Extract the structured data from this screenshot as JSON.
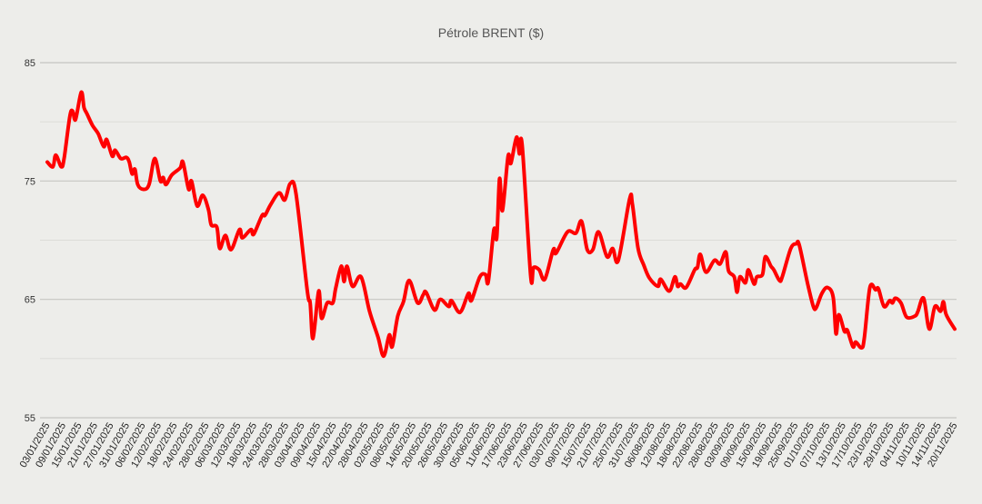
{
  "chart_data": {
    "type": "line",
    "title": "Pétrole BRENT ($)",
    "xlabel": "",
    "ylabel": "",
    "ylim": [
      55,
      85
    ],
    "yticks": [
      "85",
      "75",
      "65",
      "55"
    ],
    "minor_gridlines": [
      60,
      70,
      80
    ],
    "grid": true,
    "legend": "none",
    "colors": {
      "line": "#ff0000",
      "background": "#ededea",
      "major_grid": "#c6c6c2",
      "minor_grid": "#dcdcd8"
    },
    "xtick_labels": [
      "03/01/2025",
      "09/01/2025",
      "15/01/2025",
      "21/01/2025",
      "27/01/2025",
      "31/01/2025",
      "06/02/2025",
      "12/02/2025",
      "18/02/2025",
      "24/02/2025",
      "28/02/2025",
      "06/03/2025",
      "12/03/2025",
      "18/03/2025",
      "24/03/2025",
      "28/03/2025",
      "03/04/2025",
      "09/04/2025",
      "15/04/2025",
      "22/04/2025",
      "28/04/2025",
      "02/05/2025",
      "08/05/2025",
      "14/05/2025",
      "20/05/2025",
      "26/05/2025",
      "30/05/2025",
      "05/06/2025",
      "11/06/2025",
      "17/06/2025",
      "23/06/2025",
      "27/06/2025",
      "03/07/2025",
      "09/07/2025",
      "15/07/2025",
      "21/07/2025",
      "25/07/2025",
      "31/07/2025",
      "06/08/2025",
      "12/08/2025",
      "18/08/2025",
      "22/08/2025",
      "28/08/2025",
      "03/09/2025",
      "09/09/2025",
      "15/09/2025",
      "19/09/2025",
      "25/09/2025",
      "01/10/2025",
      "07/10/2025",
      "13/10/2025",
      "17/10/2025",
      "23/10/2025",
      "29/10/2025",
      "04/11/2025",
      "10/11/2025",
      "14/11/2025",
      "20/11/2025"
    ],
    "series": [
      {
        "points": [
          [
            "2025-01-03",
            76.6
          ],
          [
            "2025-01-05",
            76.2
          ],
          [
            "2025-01-06",
            77.2
          ],
          [
            "2025-01-08",
            76.2
          ],
          [
            "2025-01-09",
            77.0
          ],
          [
            "2025-01-11",
            80.5
          ],
          [
            "2025-01-12",
            80.9
          ],
          [
            "2025-01-13",
            80.2
          ],
          [
            "2025-01-15",
            82.5
          ],
          [
            "2025-01-16",
            81.2
          ],
          [
            "2025-01-17",
            80.7
          ],
          [
            "2025-01-19",
            79.7
          ],
          [
            "2025-01-21",
            79.0
          ],
          [
            "2025-01-23",
            77.9
          ],
          [
            "2025-01-24",
            78.5
          ],
          [
            "2025-01-26",
            77.1
          ],
          [
            "2025-01-27",
            77.6
          ],
          [
            "2025-01-29",
            76.9
          ],
          [
            "2025-01-31",
            77.0
          ],
          [
            "2025-02-01",
            76.6
          ],
          [
            "2025-02-02",
            75.6
          ],
          [
            "2025-02-03",
            76.0
          ],
          [
            "2025-02-04",
            74.7
          ],
          [
            "2025-02-06",
            74.3
          ],
          [
            "2025-02-08",
            74.7
          ],
          [
            "2025-02-10",
            76.9
          ],
          [
            "2025-02-12",
            75.0
          ],
          [
            "2025-02-13",
            75.3
          ],
          [
            "2025-02-14",
            74.7
          ],
          [
            "2025-02-16",
            75.5
          ],
          [
            "2025-02-19",
            76.1
          ],
          [
            "2025-02-20",
            76.6
          ],
          [
            "2025-02-22",
            74.3
          ],
          [
            "2025-02-23",
            75.0
          ],
          [
            "2025-02-25",
            72.9
          ],
          [
            "2025-02-27",
            73.8
          ],
          [
            "2025-03-01",
            72.6
          ],
          [
            "2025-03-02",
            71.3
          ],
          [
            "2025-03-04",
            71.1
          ],
          [
            "2025-03-05",
            69.3
          ],
          [
            "2025-03-07",
            70.4
          ],
          [
            "2025-03-09",
            69.2
          ],
          [
            "2025-03-12",
            70.9
          ],
          [
            "2025-03-13",
            70.2
          ],
          [
            "2025-03-16",
            70.9
          ],
          [
            "2025-03-17",
            70.5
          ],
          [
            "2025-03-20",
            72.1
          ],
          [
            "2025-03-21",
            72.1
          ],
          [
            "2025-03-23",
            73.0
          ],
          [
            "2025-03-26",
            74.0
          ],
          [
            "2025-03-28",
            73.4
          ],
          [
            "2025-03-30",
            74.8
          ],
          [
            "2025-04-01",
            73.9
          ],
          [
            "2025-04-05",
            65.7
          ],
          [
            "2025-04-06",
            64.7
          ],
          [
            "2025-04-07",
            61.7
          ],
          [
            "2025-04-09",
            65.7
          ],
          [
            "2025-04-10",
            63.4
          ],
          [
            "2025-04-12",
            64.7
          ],
          [
            "2025-04-14",
            64.7
          ],
          [
            "2025-04-15",
            65.9
          ],
          [
            "2025-04-17",
            67.8
          ],
          [
            "2025-04-18",
            66.5
          ],
          [
            "2025-04-19",
            67.8
          ],
          [
            "2025-04-21",
            66.1
          ],
          [
            "2025-04-24",
            66.9
          ],
          [
            "2025-04-27",
            64.0
          ],
          [
            "2025-04-30",
            61.8
          ],
          [
            "2025-05-02",
            60.2
          ],
          [
            "2025-05-04",
            62.0
          ],
          [
            "2025-05-05",
            61.0
          ],
          [
            "2025-05-07",
            63.6
          ],
          [
            "2025-05-09",
            64.8
          ],
          [
            "2025-05-11",
            66.6
          ],
          [
            "2025-05-14",
            64.7
          ],
          [
            "2025-05-16",
            65.4
          ],
          [
            "2025-05-17",
            65.6
          ],
          [
            "2025-05-20",
            64.1
          ],
          [
            "2025-05-22",
            65.0
          ],
          [
            "2025-05-25",
            64.4
          ],
          [
            "2025-05-26",
            64.9
          ],
          [
            "2025-05-29",
            63.9
          ],
          [
            "2025-06-01",
            65.5
          ],
          [
            "2025-06-02",
            64.9
          ],
          [
            "2025-06-05",
            66.9
          ],
          [
            "2025-06-07",
            67.1
          ],
          [
            "2025-06-08",
            66.5
          ],
          [
            "2025-06-10",
            70.9
          ],
          [
            "2025-06-11",
            70.2
          ],
          [
            "2025-06-12",
            75.2
          ],
          [
            "2025-06-13",
            72.5
          ],
          [
            "2025-06-15",
            77.1
          ],
          [
            "2025-06-16",
            76.5
          ],
          [
            "2025-06-18",
            78.7
          ],
          [
            "2025-06-19",
            77.3
          ],
          [
            "2025-06-20",
            78.0
          ],
          [
            "2025-06-23",
            67.0
          ],
          [
            "2025-06-24",
            67.7
          ],
          [
            "2025-06-26",
            67.5
          ],
          [
            "2025-06-28",
            66.7
          ],
          [
            "2025-07-01",
            69.2
          ],
          [
            "2025-07-02",
            68.9
          ],
          [
            "2025-07-06",
            70.7
          ],
          [
            "2025-07-09",
            70.6
          ],
          [
            "2025-07-11",
            71.6
          ],
          [
            "2025-07-13",
            69.2
          ],
          [
            "2025-07-15",
            69.2
          ],
          [
            "2025-07-17",
            70.7
          ],
          [
            "2025-07-20",
            68.6
          ],
          [
            "2025-07-22",
            69.3
          ],
          [
            "2025-07-24",
            68.3
          ],
          [
            "2025-07-28",
            73.5
          ],
          [
            "2025-07-29",
            73.0
          ],
          [
            "2025-07-31",
            69.3
          ],
          [
            "2025-08-02",
            67.9
          ],
          [
            "2025-08-04",
            66.8
          ],
          [
            "2025-08-07",
            66.1
          ],
          [
            "2025-08-08",
            66.7
          ],
          [
            "2025-08-11",
            65.7
          ],
          [
            "2025-08-13",
            66.9
          ],
          [
            "2025-08-14",
            66.1
          ],
          [
            "2025-08-15",
            66.3
          ],
          [
            "2025-08-17",
            66.0
          ],
          [
            "2025-08-20",
            67.5
          ],
          [
            "2025-08-21",
            67.7
          ],
          [
            "2025-08-22",
            68.8
          ],
          [
            "2025-08-24",
            67.3
          ],
          [
            "2025-08-27",
            68.3
          ],
          [
            "2025-08-29",
            68.0
          ],
          [
            "2025-08-31",
            69.0
          ],
          [
            "2025-09-01",
            67.4
          ],
          [
            "2025-09-03",
            66.9
          ],
          [
            "2025-09-04",
            65.6
          ],
          [
            "2025-09-05",
            66.9
          ],
          [
            "2025-09-07",
            66.4
          ],
          [
            "2025-09-08",
            67.5
          ],
          [
            "2025-09-10",
            66.3
          ],
          [
            "2025-09-11",
            66.9
          ],
          [
            "2025-09-13",
            67.1
          ],
          [
            "2025-09-14",
            68.6
          ],
          [
            "2025-09-16",
            67.8
          ],
          [
            "2025-09-17",
            67.5
          ],
          [
            "2025-09-19",
            66.6
          ],
          [
            "2025-09-20",
            66.9
          ],
          [
            "2025-09-23",
            69.3
          ],
          [
            "2025-09-25",
            69.7
          ],
          [
            "2025-09-26",
            69.6
          ],
          [
            "2025-09-29",
            66.3
          ],
          [
            "2025-10-01",
            64.4
          ],
          [
            "2025-10-02",
            64.3
          ],
          [
            "2025-10-04",
            65.5
          ],
          [
            "2025-10-06",
            66.0
          ],
          [
            "2025-10-08",
            65.2
          ],
          [
            "2025-10-09",
            62.1
          ],
          [
            "2025-10-10",
            63.7
          ],
          [
            "2025-10-12",
            62.3
          ],
          [
            "2025-10-13",
            62.4
          ],
          [
            "2025-10-15",
            61.0
          ],
          [
            "2025-10-16",
            61.4
          ],
          [
            "2025-10-18",
            60.9
          ],
          [
            "2025-10-19",
            61.7
          ],
          [
            "2025-10-21",
            66.0
          ],
          [
            "2025-10-23",
            65.8
          ],
          [
            "2025-10-24",
            65.9
          ],
          [
            "2025-10-26",
            64.4
          ],
          [
            "2025-10-28",
            64.9
          ],
          [
            "2025-10-29",
            64.7
          ],
          [
            "2025-10-30",
            65.1
          ],
          [
            "2025-11-01",
            64.7
          ],
          [
            "2025-11-03",
            63.5
          ],
          [
            "2025-11-06",
            63.6
          ],
          [
            "2025-11-07",
            64.0
          ],
          [
            "2025-11-09",
            65.1
          ],
          [
            "2025-11-11",
            62.5
          ],
          [
            "2025-11-13",
            64.4
          ],
          [
            "2025-11-15",
            64.0
          ],
          [
            "2025-11-16",
            64.8
          ],
          [
            "2025-11-17",
            63.7
          ],
          [
            "2025-11-20",
            62.5
          ]
        ]
      }
    ]
  }
}
